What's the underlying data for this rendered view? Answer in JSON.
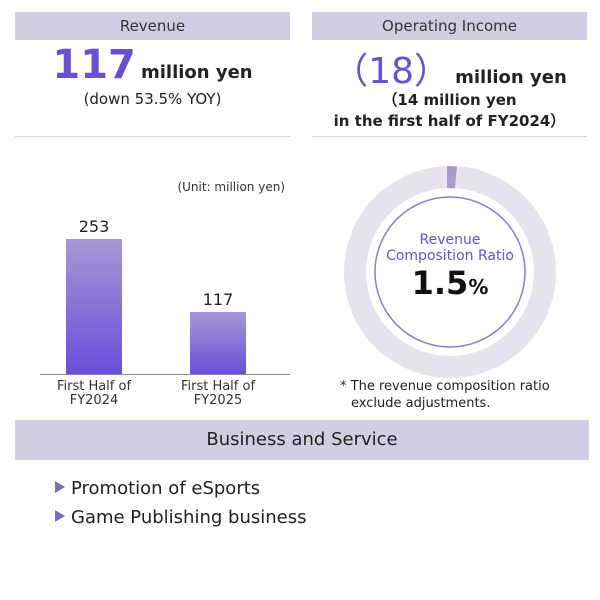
{
  "revenue": {
    "header": "Revenue",
    "value": "117",
    "unit": "million yen",
    "change": "(down 53.5% YOY)"
  },
  "operating_income": {
    "header": "Operating Income",
    "value": "（18）",
    "unit": "million yen",
    "comparison_line1": "（14 million yen",
    "comparison_line2": "in the first half of FY2024）"
  },
  "chart_data": [
    {
      "type": "bar",
      "unit_note": "(Unit: million yen)",
      "categories": [
        "First Half of FY2024",
        "First Half of FY2025"
      ],
      "category_lines": [
        [
          "First Half of",
          "FY2024"
        ],
        [
          "First Half of",
          "FY2025"
        ]
      ],
      "values": [
        253,
        117
      ],
      "value_labels": [
        "253",
        "117"
      ],
      "ylim": [
        0,
        253
      ],
      "colors": {
        "bar_top": "#a697d6",
        "bar_bottom": "#6a4fd8"
      }
    },
    {
      "type": "pie",
      "label_line1": "Revenue",
      "label_line2": "Composition Ratio",
      "value": 1.5,
      "value_number": "1.5",
      "value_unit": "%",
      "colors": {
        "segment": "#a79bd0",
        "ring": "#e6e3ed",
        "inner_circle": "#8c7cd0"
      }
    }
  ],
  "note": {
    "line1": "* The revenue composition ratio",
    "line2": "exclude adjustments."
  },
  "business": {
    "header": "Business and Service",
    "items": [
      "Promotion of eSports",
      "Game Publishing business"
    ]
  },
  "colors": {
    "accent": "#6a4fcf",
    "header_bg": "#d3cde3",
    "bullet": "#7b6bb8"
  }
}
